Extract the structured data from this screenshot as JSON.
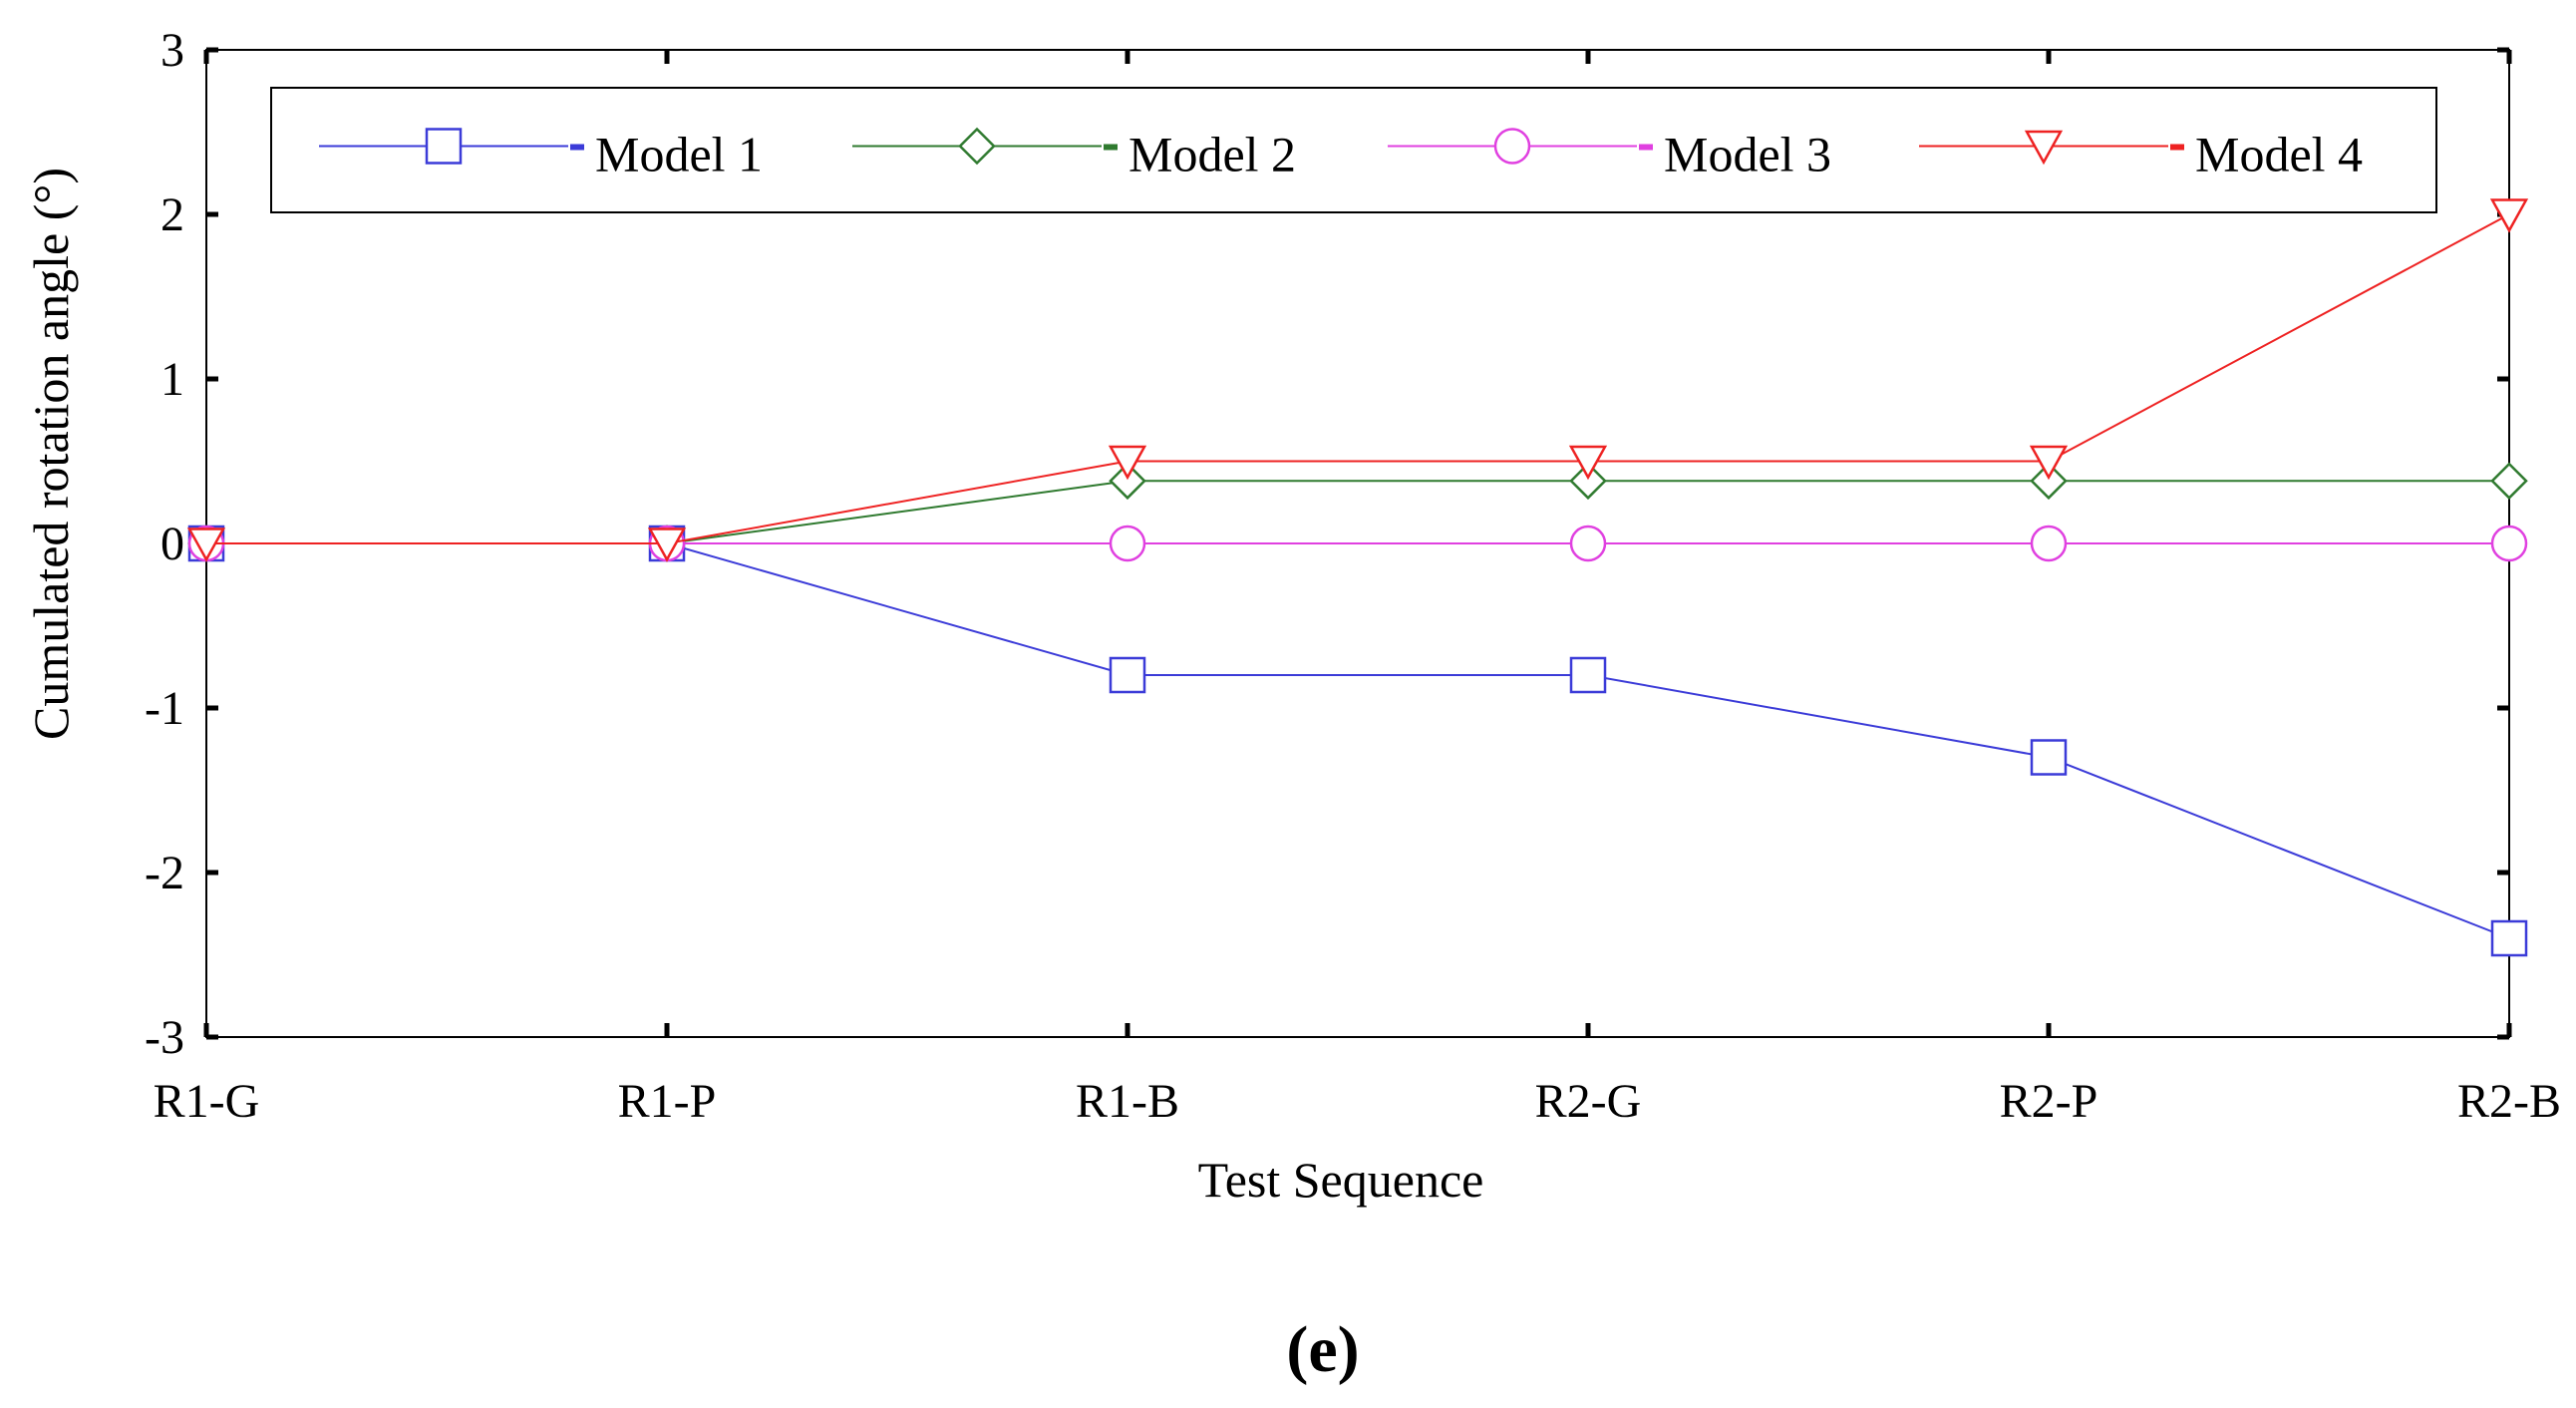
{
  "chart_data": {
    "type": "line",
    "title": "",
    "xlabel": "Test Sequence",
    "ylabel": "Cumulated rotation angle (°)",
    "categories": [
      "R1-G",
      "R1-P",
      "R1-B",
      "R2-G",
      "R2-P",
      "R2-B"
    ],
    "ylim": [
      -3,
      3
    ],
    "yticks": [
      3,
      2,
      1,
      0,
      -1,
      -2,
      -3
    ],
    "ytick_labels": [
      "3",
      "2",
      "1",
      "0",
      "-1",
      "-2",
      "-3"
    ],
    "grid": false,
    "zero_line": true,
    "legend_position": "top, inside plot, single row",
    "series": [
      {
        "name": "Model 1",
        "marker": "square",
        "color": "#3b3bd8",
        "values": [
          0,
          0,
          -0.8,
          -0.8,
          -1.3,
          -2.4
        ]
      },
      {
        "name": "Model 2",
        "marker": "diamond",
        "color": "#2f7a2f",
        "values": [
          0,
          0,
          0.38,
          0.38,
          0.38,
          0.38
        ]
      },
      {
        "name": "Model 3",
        "marker": "circle",
        "color": "#e040e0",
        "values": [
          0,
          0,
          0,
          0,
          0,
          0
        ]
      },
      {
        "name": "Model 4",
        "marker": "triangle-down",
        "color": "#ee2222",
        "values": [
          0,
          0,
          0.5,
          0.5,
          0.5,
          2.0
        ]
      }
    ]
  },
  "caption": "(e)"
}
